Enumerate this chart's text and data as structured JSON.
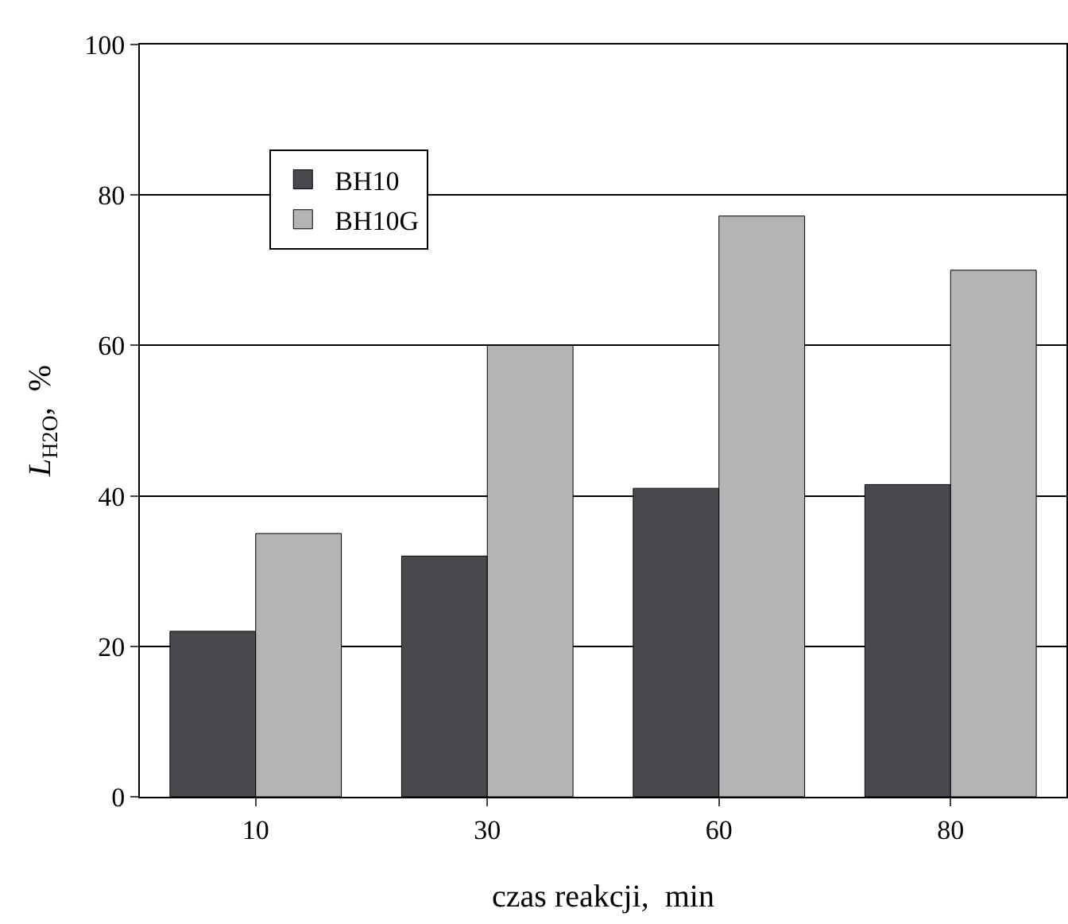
{
  "chart_data": {
    "type": "bar",
    "xlabel": "czas reakcji,  min",
    "ylabel": "L$_{H2O}$,  %",
    "categories": [
      "10",
      "30",
      "60",
      "80"
    ],
    "series": [
      {
        "name": "BH10",
        "color": "#4a484e",
        "values": [
          22,
          32,
          41,
          41.5
        ]
      },
      {
        "name": "BH10G",
        "color": "#b4b4b4",
        "values": [
          35,
          60,
          77.2,
          70
        ]
      }
    ],
    "ylim": [
      0,
      100
    ],
    "yticks": [
      0,
      20,
      40,
      60,
      80,
      100
    ],
    "grid": "y",
    "legend": "top left"
  }
}
